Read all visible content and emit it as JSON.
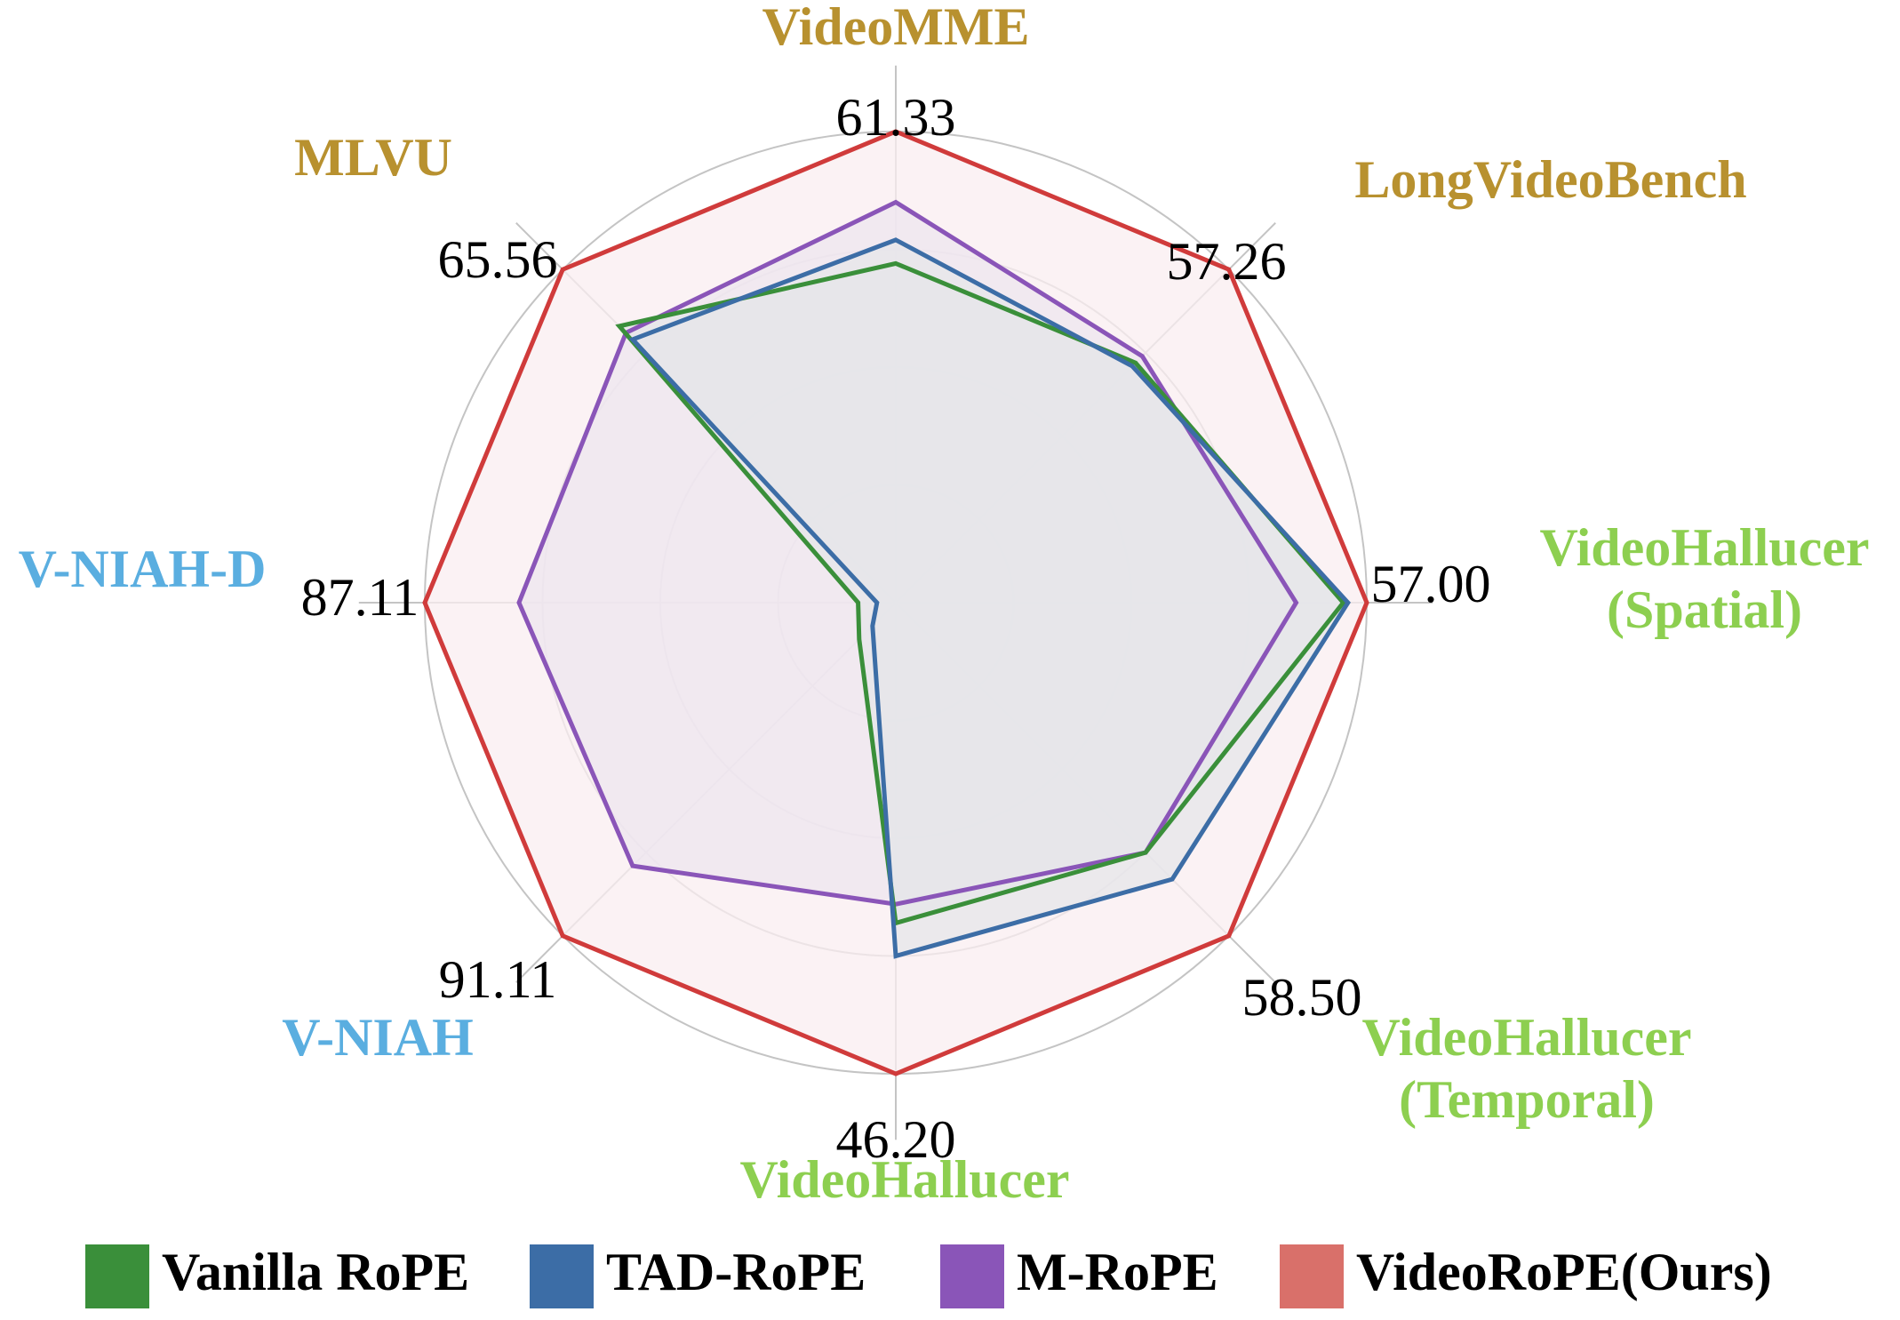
{
  "chart_data": {
    "type": "radar",
    "title": "",
    "axes": [
      {
        "name": "VideoMME",
        "lines": [
          "VideoMME"
        ],
        "max": "61.33",
        "group": "long"
      },
      {
        "name": "LongVideoBench",
        "lines": [
          "LongVideoBench"
        ],
        "max": "57.26",
        "group": "long"
      },
      {
        "name": "VideoHallucer (Spatial)",
        "lines": [
          "VideoHallucer",
          "(Spatial)"
        ],
        "max": "57.00",
        "group": "halluc"
      },
      {
        "name": "VideoHallucer (Temporal)",
        "lines": [
          "VideoHallucer",
          "(Temporal)"
        ],
        "max": "58.50",
        "group": "halluc"
      },
      {
        "name": "VideoHallucer",
        "lines": [
          "VideoHallucer"
        ],
        "max": "46.20",
        "group": "halluc"
      },
      {
        "name": "V-NIAH",
        "lines": [
          "V-NIAH"
        ],
        "max": "91.11",
        "group": "niah"
      },
      {
        "name": "V-NIAH-D",
        "lines": [
          "V-NIAH-D"
        ],
        "max": "87.11",
        "group": "niah"
      },
      {
        "name": "MLVU",
        "lines": [
          "MLVU"
        ],
        "max": "65.56",
        "group": "long"
      }
    ],
    "rings": 4,
    "series": [
      {
        "name": "Vanilla RoPE",
        "color": "#3a8f3a",
        "fill": "#e6e6ea",
        "values": [
          0.72,
          0.72,
          0.95,
          0.75,
          0.68,
          0.11,
          0.08,
          0.83
        ]
      },
      {
        "name": "TAD-RoPE",
        "color": "#3c6da6",
        "fill": "#e6e6ea",
        "values": [
          0.77,
          0.71,
          0.96,
          0.83,
          0.75,
          0.07,
          0.04,
          0.79
        ]
      },
      {
        "name": "M-RoPE",
        "color": "#8a55b8",
        "fill": "#eee6ef",
        "values": [
          0.85,
          0.74,
          0.85,
          0.75,
          0.64,
          0.79,
          0.8,
          0.81
        ]
      },
      {
        "name": "VideoRoPE(Ours)",
        "color": "#d03b3b",
        "fill": "#f9eef0",
        "values": [
          1.0,
          1.0,
          1.0,
          1.0,
          1.0,
          1.0,
          1.0,
          1.0
        ]
      }
    ],
    "legend_swatch_colors": [
      "#3a8f3a",
      "#3c6da6",
      "#8a55b8",
      "#d9706a"
    ],
    "group_colors": {
      "long": "#b8912f",
      "halluc": "#8dcf50",
      "niah": "#5aaee0"
    },
    "grid": true,
    "legend_position": "bottom"
  }
}
